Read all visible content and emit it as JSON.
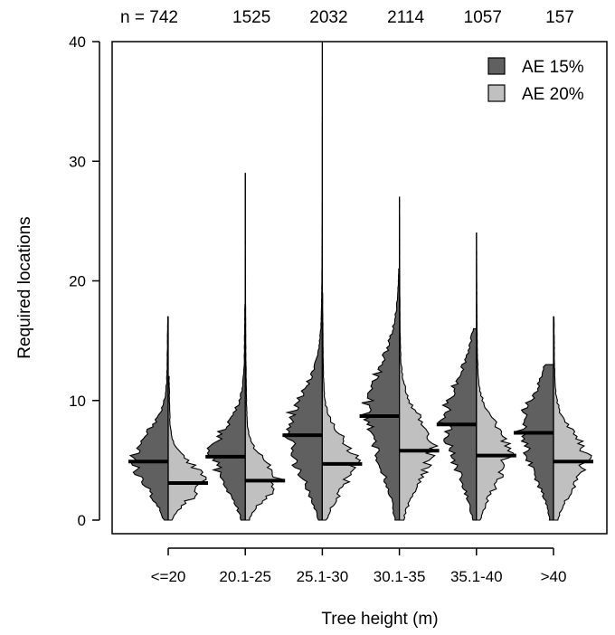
{
  "chart_data": {
    "type": "split-violin",
    "xlabel": "Tree height (m)",
    "ylabel": "Required locations",
    "ylim": [
      0,
      40
    ],
    "yticks": [
      0,
      10,
      20,
      30,
      40
    ],
    "categories": [
      "<=20",
      "20.1-25",
      "25.1-30",
      "30.1-35",
      "35.1-40",
      ">40"
    ],
    "counts": [
      "n = 742",
      "1525",
      "2032",
      "2114",
      "1057",
      "157"
    ],
    "legend_position": "top-right",
    "series": [
      {
        "name": "AE 15%",
        "color": "#606060",
        "side": "left",
        "medians": [
          4.9,
          5.3,
          7.1,
          8.7,
          8.0,
          7.3
        ],
        "maxima": [
          17,
          18,
          40,
          21,
          16,
          13
        ]
      },
      {
        "name": "AE 20%",
        "color": "#c0c0c0",
        "side": "right",
        "medians": [
          3.1,
          3.3,
          4.7,
          5.8,
          5.4,
          4.9
        ],
        "maxima": [
          12,
          29,
          19,
          27,
          24,
          17
        ]
      }
    ]
  }
}
